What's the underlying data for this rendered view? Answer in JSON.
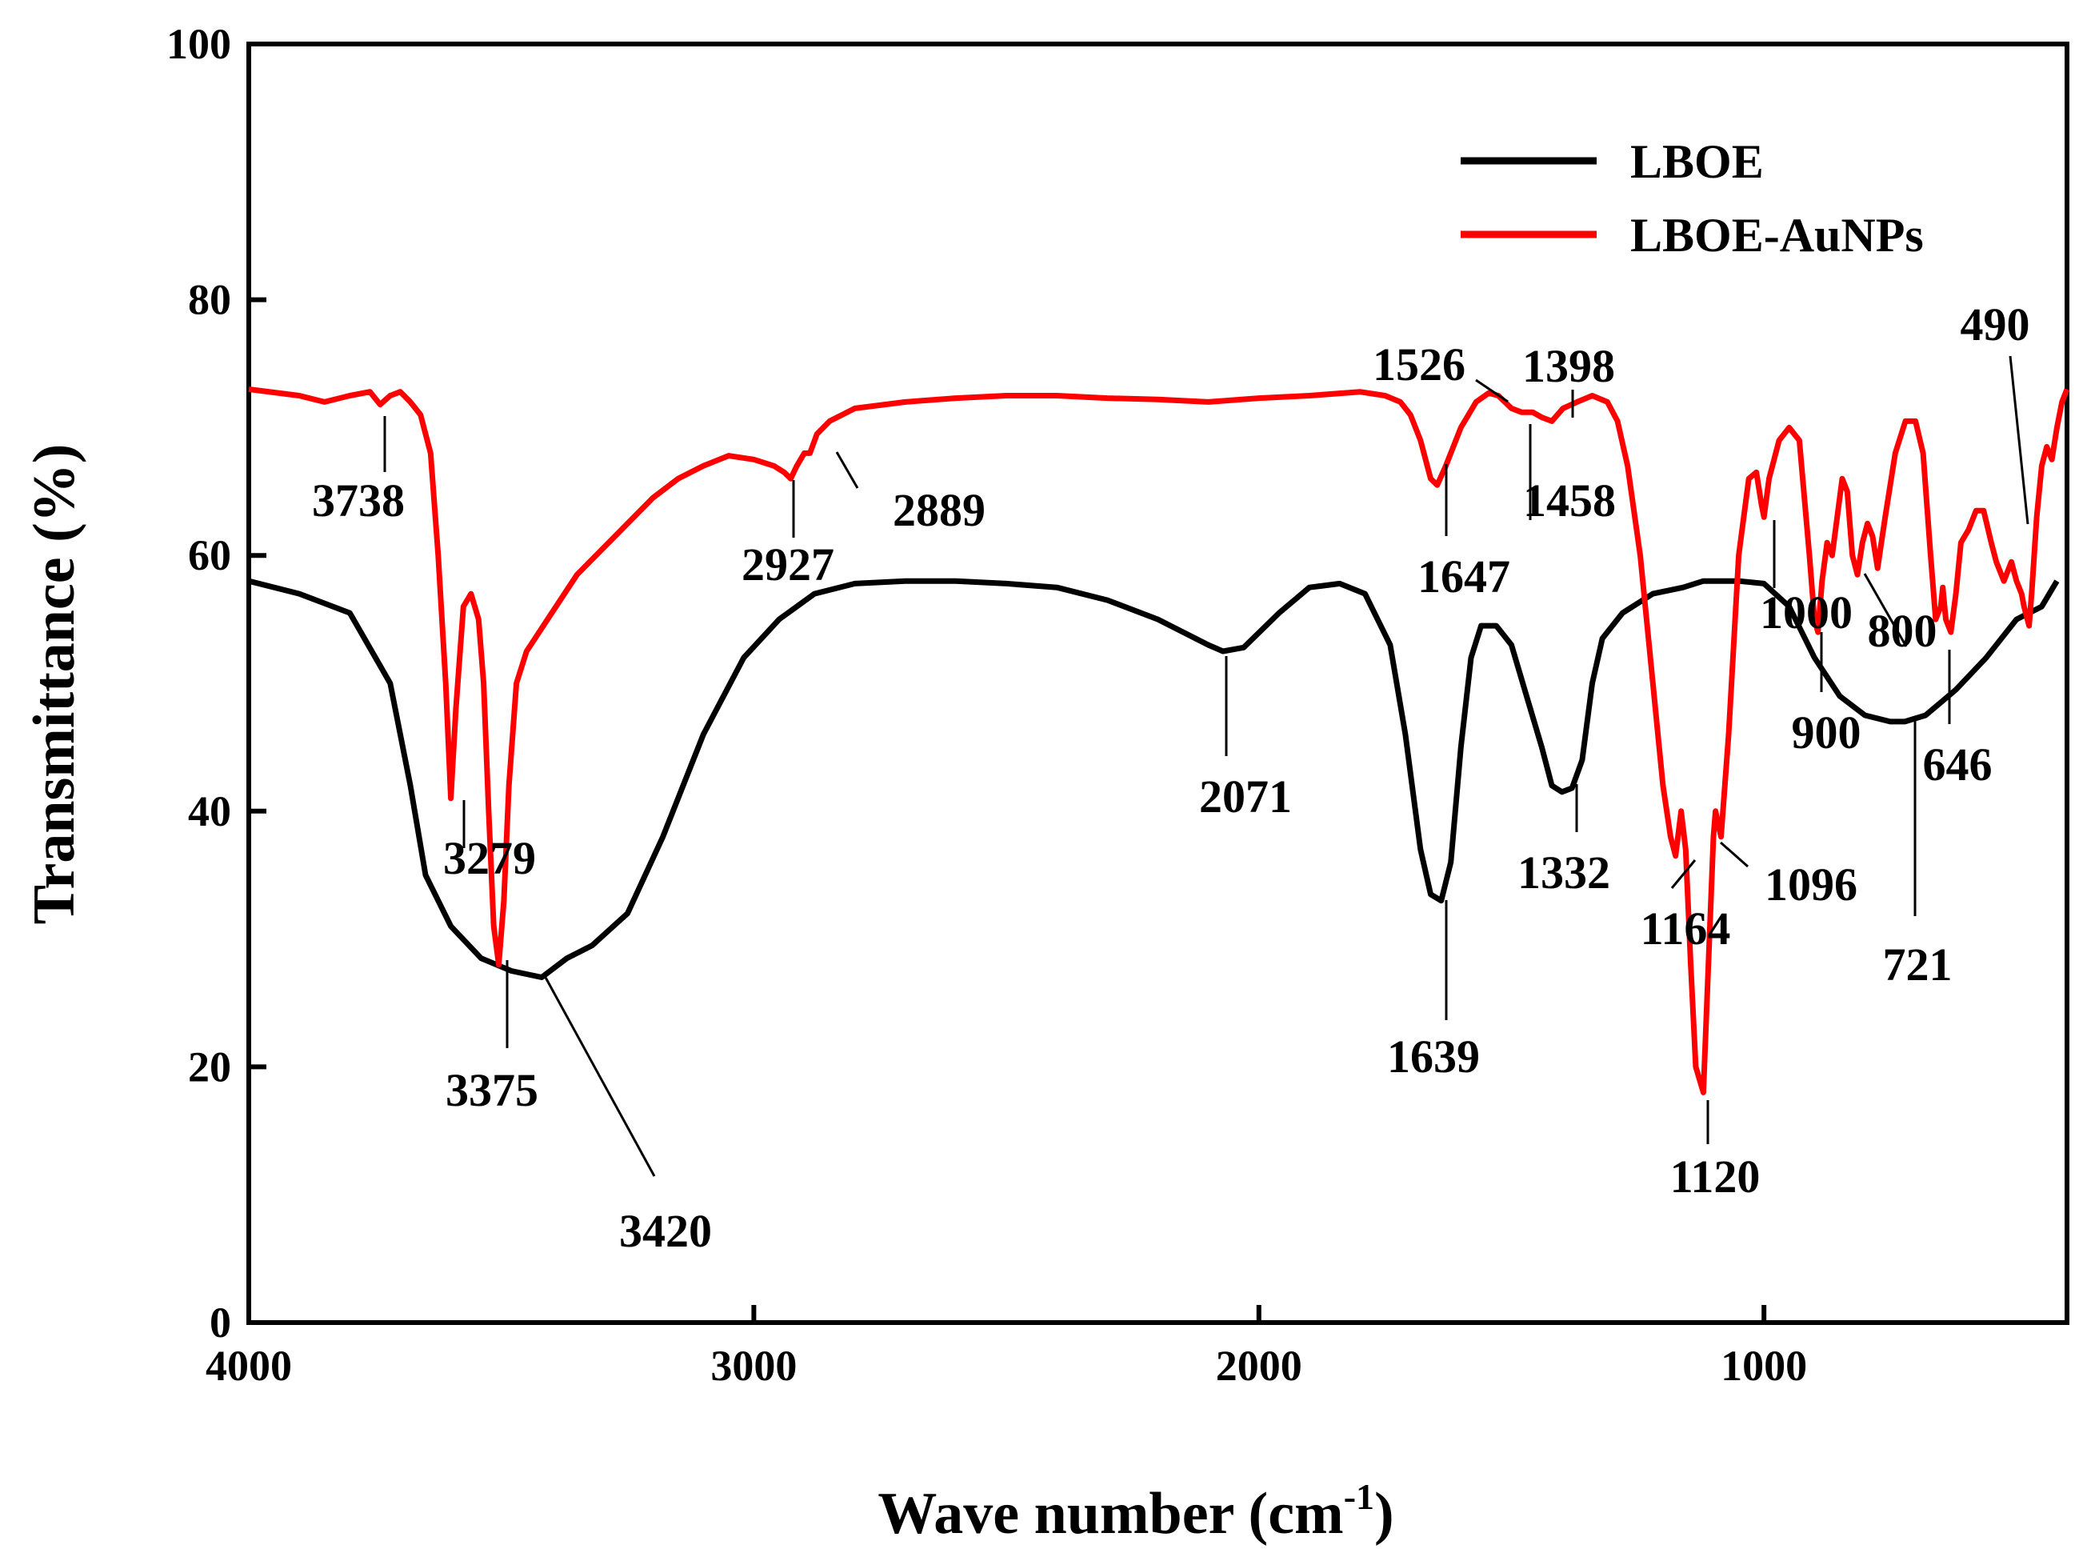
{
  "chart_data": {
    "type": "line",
    "title": "",
    "xlabel": "Wave number (cm",
    "xlabel_sup": "-1",
    "xlabel_close": ")",
    "ylabel": "Transmittance (%)",
    "xlim": [
      4000,
      400
    ],
    "ylim": [
      0,
      100
    ],
    "x_ticks": [
      4000,
      3000,
      2000,
      1000
    ],
    "x_tick_labels": [
      "4000",
      "3000",
      "2000",
      "1000"
    ],
    "y_ticks": [
      0,
      20,
      40,
      60,
      80,
      100
    ],
    "y_tick_labels": [
      "0",
      "20",
      "40",
      "60",
      "80",
      "100"
    ],
    "legend_position": "top-right",
    "series": [
      {
        "name": "LBOE",
        "color": "#000000",
        "points": [
          [
            4000,
            58
          ],
          [
            3900,
            57
          ],
          [
            3800,
            55.5
          ],
          [
            3720,
            50
          ],
          [
            3680,
            42
          ],
          [
            3650,
            35
          ],
          [
            3600,
            31
          ],
          [
            3540,
            28.5
          ],
          [
            3480,
            27.5
          ],
          [
            3420,
            27
          ],
          [
            3370,
            28.5
          ],
          [
            3320,
            29.5
          ],
          [
            3250,
            32
          ],
          [
            3180,
            38
          ],
          [
            3100,
            46
          ],
          [
            3020,
            52
          ],
          [
            2950,
            55
          ],
          [
            2880,
            57
          ],
          [
            2800,
            57.8
          ],
          [
            2700,
            58
          ],
          [
            2600,
            58
          ],
          [
            2500,
            57.8
          ],
          [
            2400,
            57.5
          ],
          [
            2300,
            56.5
          ],
          [
            2200,
            55
          ],
          [
            2100,
            53
          ],
          [
            2071,
            52.5
          ],
          [
            2030,
            52.8
          ],
          [
            1960,
            55.5
          ],
          [
            1900,
            57.5
          ],
          [
            1840,
            57.8
          ],
          [
            1790,
            57
          ],
          [
            1740,
            53
          ],
          [
            1710,
            46
          ],
          [
            1680,
            37
          ],
          [
            1660,
            33.5
          ],
          [
            1639,
            33
          ],
          [
            1620,
            36
          ],
          [
            1600,
            45
          ],
          [
            1580,
            52
          ],
          [
            1560,
            54.5
          ],
          [
            1530,
            54.5
          ],
          [
            1500,
            53
          ],
          [
            1470,
            49
          ],
          [
            1440,
            45
          ],
          [
            1420,
            42
          ],
          [
            1400,
            41.5
          ],
          [
            1380,
            41.8
          ],
          [
            1360,
            44
          ],
          [
            1340,
            50
          ],
          [
            1320,
            53.5
          ],
          [
            1280,
            55.5
          ],
          [
            1220,
            57
          ],
          [
            1160,
            57.5
          ],
          [
            1120,
            58
          ],
          [
            1050,
            58
          ],
          [
            1000,
            57.8
          ],
          [
            950,
            56
          ],
          [
            900,
            52
          ],
          [
            850,
            49
          ],
          [
            800,
            47.5
          ],
          [
            750,
            47
          ],
          [
            721,
            47
          ],
          [
            680,
            47.5
          ],
          [
            620,
            49.5
          ],
          [
            560,
            52
          ],
          [
            500,
            55
          ],
          [
            450,
            56
          ],
          [
            420,
            58
          ]
        ]
      },
      {
        "name": "LBOE-AuNPs",
        "color": "#ff0000",
        "points": [
          [
            4000,
            73
          ],
          [
            3900,
            72.5
          ],
          [
            3850,
            72
          ],
          [
            3800,
            72.5
          ],
          [
            3760,
            72.8
          ],
          [
            3740,
            71.8
          ],
          [
            3720,
            72.5
          ],
          [
            3700,
            72.8
          ],
          [
            3680,
            72
          ],
          [
            3660,
            71
          ],
          [
            3640,
            68
          ],
          [
            3625,
            60
          ],
          [
            3610,
            50
          ],
          [
            3600,
            41
          ],
          [
            3590,
            48
          ],
          [
            3575,
            56
          ],
          [
            3560,
            57
          ],
          [
            3545,
            55
          ],
          [
            3535,
            50
          ],
          [
            3525,
            40
          ],
          [
            3515,
            31
          ],
          [
            3505,
            28
          ],
          [
            3495,
            33
          ],
          [
            3485,
            42
          ],
          [
            3470,
            50
          ],
          [
            3450,
            52.5
          ],
          [
            3400,
            55.5
          ],
          [
            3350,
            58.5
          ],
          [
            3300,
            60.5
          ],
          [
            3250,
            62.5
          ],
          [
            3200,
            64.5
          ],
          [
            3150,
            66
          ],
          [
            3100,
            67
          ],
          [
            3050,
            67.8
          ],
          [
            3000,
            67.5
          ],
          [
            2960,
            67
          ],
          [
            2940,
            66.5
          ],
          [
            2927,
            66
          ],
          [
            2915,
            67
          ],
          [
            2900,
            68
          ],
          [
            2889,
            68
          ],
          [
            2875,
            69.5
          ],
          [
            2850,
            70.5
          ],
          [
            2800,
            71.5
          ],
          [
            2700,
            72
          ],
          [
            2600,
            72.3
          ],
          [
            2500,
            72.5
          ],
          [
            2400,
            72.5
          ],
          [
            2300,
            72.3
          ],
          [
            2200,
            72.2
          ],
          [
            2100,
            72
          ],
          [
            2000,
            72.3
          ],
          [
            1900,
            72.5
          ],
          [
            1800,
            72.8
          ],
          [
            1750,
            72.5
          ],
          [
            1720,
            72
          ],
          [
            1700,
            71
          ],
          [
            1680,
            69
          ],
          [
            1660,
            66
          ],
          [
            1647,
            65.5
          ],
          [
            1630,
            67
          ],
          [
            1600,
            70
          ],
          [
            1570,
            72
          ],
          [
            1545,
            72.7
          ],
          [
            1526,
            72.5
          ],
          [
            1500,
            71.5
          ],
          [
            1480,
            71.2
          ],
          [
            1458,
            71.2
          ],
          [
            1440,
            70.8
          ],
          [
            1420,
            70.5
          ],
          [
            1398,
            71.5
          ],
          [
            1370,
            72
          ],
          [
            1340,
            72.5
          ],
          [
            1310,
            72
          ],
          [
            1290,
            70.5
          ],
          [
            1270,
            67
          ],
          [
            1245,
            60
          ],
          [
            1220,
            50
          ],
          [
            1200,
            42
          ],
          [
            1185,
            38
          ],
          [
            1175,
            36.5
          ],
          [
            1164,
            40
          ],
          [
            1155,
            37
          ],
          [
            1145,
            28
          ],
          [
            1135,
            20
          ],
          [
            1120,
            18
          ],
          [
            1110,
            28
          ],
          [
            1100,
            38
          ],
          [
            1096,
            40
          ],
          [
            1085,
            38
          ],
          [
            1070,
            46
          ],
          [
            1050,
            60
          ],
          [
            1030,
            66
          ],
          [
            1015,
            66.5
          ],
          [
            1005,
            64
          ],
          [
            1000,
            63
          ],
          [
            990,
            66
          ],
          [
            970,
            69
          ],
          [
            950,
            70
          ],
          [
            930,
            69
          ],
          [
            910,
            60
          ],
          [
            900,
            55
          ],
          [
            893,
            54
          ],
          [
            885,
            58
          ],
          [
            875,
            61
          ],
          [
            865,
            60
          ],
          [
            855,
            63
          ],
          [
            845,
            66
          ],
          [
            835,
            65
          ],
          [
            825,
            60
          ],
          [
            815,
            58.5
          ],
          [
            805,
            61
          ],
          [
            795,
            62.5
          ],
          [
            785,
            61.5
          ],
          [
            775,
            59
          ],
          [
            760,
            63
          ],
          [
            740,
            68
          ],
          [
            720,
            70.5
          ],
          [
            700,
            70.5
          ],
          [
            685,
            68
          ],
          [
            670,
            60
          ],
          [
            660,
            55
          ],
          [
            650,
            56
          ],
          [
            646,
            57.5
          ],
          [
            640,
            55
          ],
          [
            630,
            54
          ],
          [
            620,
            57
          ],
          [
            610,
            61
          ],
          [
            595,
            62
          ],
          [
            580,
            63.5
          ],
          [
            565,
            63.5
          ],
          [
            550,
            61
          ],
          [
            540,
            59.5
          ],
          [
            525,
            58
          ],
          [
            510,
            59.5
          ],
          [
            500,
            58
          ],
          [
            490,
            57
          ],
          [
            485,
            56
          ],
          [
            475,
            54.5
          ],
          [
            470,
            57
          ],
          [
            460,
            63
          ],
          [
            450,
            67
          ],
          [
            440,
            68.5
          ],
          [
            430,
            67.5
          ],
          [
            420,
            70
          ],
          [
            410,
            72
          ],
          [
            400,
            73
          ]
        ]
      }
    ],
    "annotations": [
      {
        "series": 1,
        "label": "3738",
        "peak_x": 3738,
        "peak_y": 72.5
      },
      {
        "series": 1,
        "label": "3279",
        "peak_x": 3600,
        "peak_y": 41
      },
      {
        "series": 1,
        "label": "3375",
        "peak_x": 3505,
        "peak_y": 28
      },
      {
        "series": 0,
        "label": "3420",
        "peak_x": 3420,
        "peak_y": 27
      },
      {
        "series": 1,
        "label": "2927",
        "peak_x": 2927,
        "peak_y": 66
      },
      {
        "series": 1,
        "label": "2889",
        "peak_x": 2889,
        "peak_y": 68.2
      },
      {
        "series": 0,
        "label": "2071",
        "peak_x": 2071,
        "peak_y": 52.5
      },
      {
        "series": 1,
        "label": "1526",
        "peak_x": 1526,
        "peak_y": 72.5
      },
      {
        "series": 1,
        "label": "1398",
        "peak_x": 1398,
        "peak_y": 71.5
      },
      {
        "series": 1,
        "label": "1647",
        "peak_x": 1647,
        "peak_y": 65.5
      },
      {
        "series": 1,
        "label": "1458",
        "peak_x": 1458,
        "peak_y": 71.2
      },
      {
        "series": 0,
        "label": "1639",
        "peak_x": 1639,
        "peak_y": 33
      },
      {
        "series": 0,
        "label": "1332",
        "peak_x": 1400,
        "peak_y": 41.5
      },
      {
        "series": 1,
        "label": "1164",
        "peak_x": 1164,
        "peak_y": 40
      },
      {
        "series": 1,
        "label": "1096",
        "peak_x": 1096,
        "peak_y": 40
      },
      {
        "series": 1,
        "label": "1120",
        "peak_x": 1120,
        "peak_y": 18
      },
      {
        "series": 1,
        "label": "1000",
        "peak_x": 1000,
        "peak_y": 63
      },
      {
        "series": 1,
        "label": "900",
        "peak_x": 893,
        "peak_y": 54
      },
      {
        "series": 1,
        "label": "800",
        "peak_x": 815,
        "peak_y": 58.5
      },
      {
        "series": 1,
        "label": "646",
        "peak_x": 646,
        "peak_y": 57.5
      },
      {
        "series": 0,
        "label": "721",
        "peak_x": 721,
        "peak_y": 47
      },
      {
        "series": 1,
        "label": "490",
        "peak_x": 490,
        "peak_y": 57
      }
    ]
  }
}
